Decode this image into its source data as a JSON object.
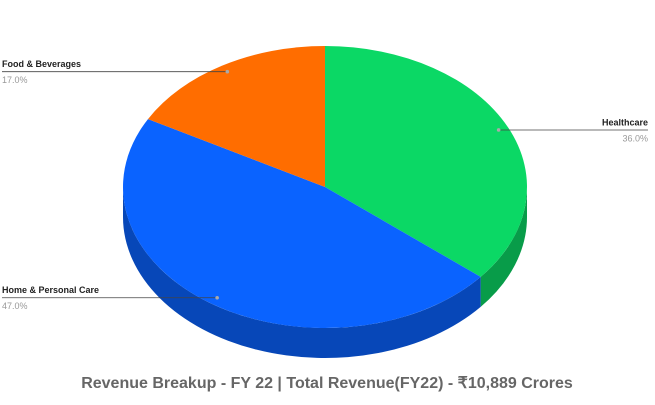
{
  "chart_data": {
    "type": "pie",
    "title": "Revenue Breakup - FY 22 | Total Revenue(FY22) - ₹10,889 Crores",
    "categories": [
      "Healthcare",
      "Home & Personal Care",
      "Food & Beverages"
    ],
    "values": [
      36,
      47,
      17
    ],
    "value_labels": [
      "36.0%",
      "47.0%",
      "17.0%"
    ],
    "colors": [
      "#0bd865",
      "#0a63ff",
      "#ff6d00"
    ],
    "three_d": true
  }
}
